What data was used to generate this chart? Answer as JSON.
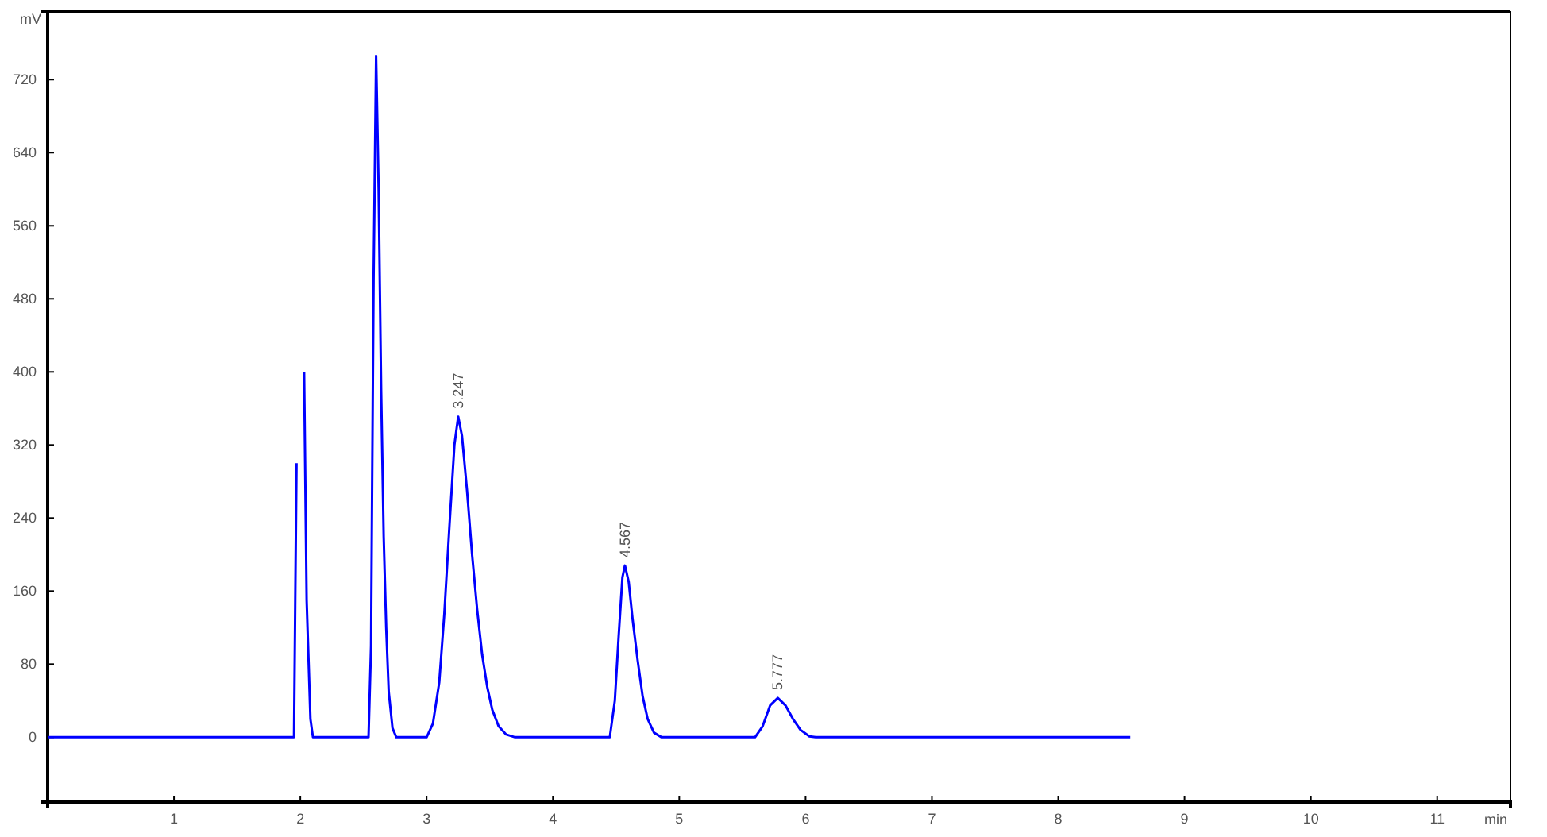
{
  "chart_data": {
    "type": "line",
    "xlabel": "min",
    "ylabel": "mV",
    "xlim": [
      0,
      11.58
    ],
    "xticks": [
      1,
      2,
      3,
      4,
      5,
      6,
      7,
      8,
      9,
      10,
      11
    ],
    "ylim": [
      -71,
      795
    ],
    "yticks": [
      0,
      80,
      160,
      240,
      320,
      400,
      480,
      560,
      640,
      720
    ],
    "grid": false,
    "marker": "none",
    "line_style": "solid",
    "series": [
      {
        "color": "#0000ff",
        "x": [
          0,
          1.95,
          1.97,
          1.985,
          2.0,
          2.015,
          2.03,
          2.05,
          2.08,
          2.1,
          2.54,
          2.56,
          2.58,
          2.6,
          2.62,
          2.64,
          2.66,
          2.68,
          2.7,
          2.73,
          2.76,
          3.0,
          3.05,
          3.1,
          3.14,
          3.18,
          3.22,
          3.25,
          3.28,
          3.32,
          3.36,
          3.4,
          3.44,
          3.48,
          3.52,
          3.57,
          3.63,
          3.7,
          4.45,
          4.49,
          4.52,
          4.55,
          4.57,
          4.6,
          4.63,
          4.67,
          4.71,
          4.75,
          4.8,
          4.86,
          5.6,
          5.66,
          5.72,
          5.78,
          5.84,
          5.9,
          5.96,
          6.03,
          6.08,
          8.57
        ],
        "values": [
          0,
          0,
          300,
          null,
          null,
          null,
          400,
          150,
          20,
          0,
          0,
          100,
          500,
          746,
          600,
          380,
          220,
          120,
          50,
          10,
          0,
          0,
          15,
          60,
          135,
          230,
          320,
          351,
          330,
          270,
          200,
          140,
          90,
          55,
          30,
          12,
          3,
          0,
          0,
          40,
          110,
          175,
          188,
          170,
          130,
          85,
          45,
          20,
          5,
          0,
          0,
          12,
          35,
          43,
          35,
          20,
          8,
          1,
          0,
          0
        ]
      }
    ],
    "annotations": [
      {
        "text": "3.247",
        "x": 3.25,
        "y": 351
      },
      {
        "text": "4.567",
        "x": 4.57,
        "y": 188
      },
      {
        "text": "5.777",
        "x": 5.78,
        "y": 43
      }
    ]
  }
}
